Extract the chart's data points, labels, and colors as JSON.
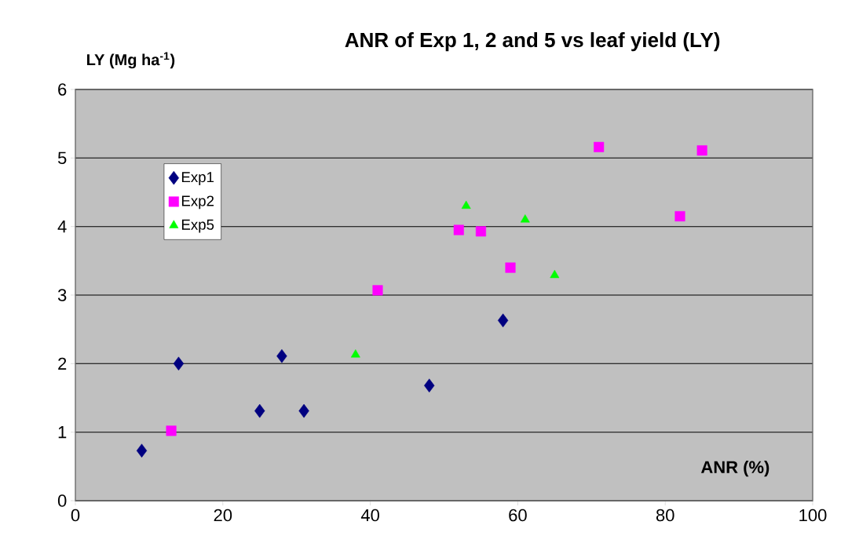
{
  "chart_data": {
    "type": "scatter",
    "title": "ANR of Exp 1, 2 and 5 vs leaf yield (LY)",
    "xlabel": "ANR (%)",
    "ylabel": "LY (Mg ha$^{-1}$)",
    "xlim": [
      0,
      100
    ],
    "ylim": [
      0,
      6
    ],
    "xticks": [
      0,
      20,
      40,
      60,
      80,
      100
    ],
    "yticks": [
      0,
      1,
      2,
      3,
      4,
      5,
      6
    ],
    "grid": "y",
    "legend": "top left",
    "series": [
      {
        "name": "Exp1",
        "color": "#000080",
        "marker": "diamond",
        "x": [
          9,
          14,
          25,
          28,
          31,
          48,
          58
        ],
        "values": [
          0.73,
          2.0,
          1.31,
          2.11,
          1.31,
          1.68,
          2.63
        ]
      },
      {
        "name": "Exp2",
        "color": "#ff00ff",
        "marker": "square",
        "x": [
          13,
          41,
          52,
          55,
          59,
          71,
          82,
          85
        ],
        "values": [
          1.02,
          3.07,
          3.95,
          3.93,
          3.4,
          5.16,
          4.15,
          5.11
        ]
      },
      {
        "name": "Exp5",
        "color": "#00ff00",
        "marker": "triangle",
        "x": [
          38,
          53,
          61,
          65
        ],
        "values": [
          2.13,
          4.3,
          4.1,
          3.29
        ]
      }
    ]
  }
}
